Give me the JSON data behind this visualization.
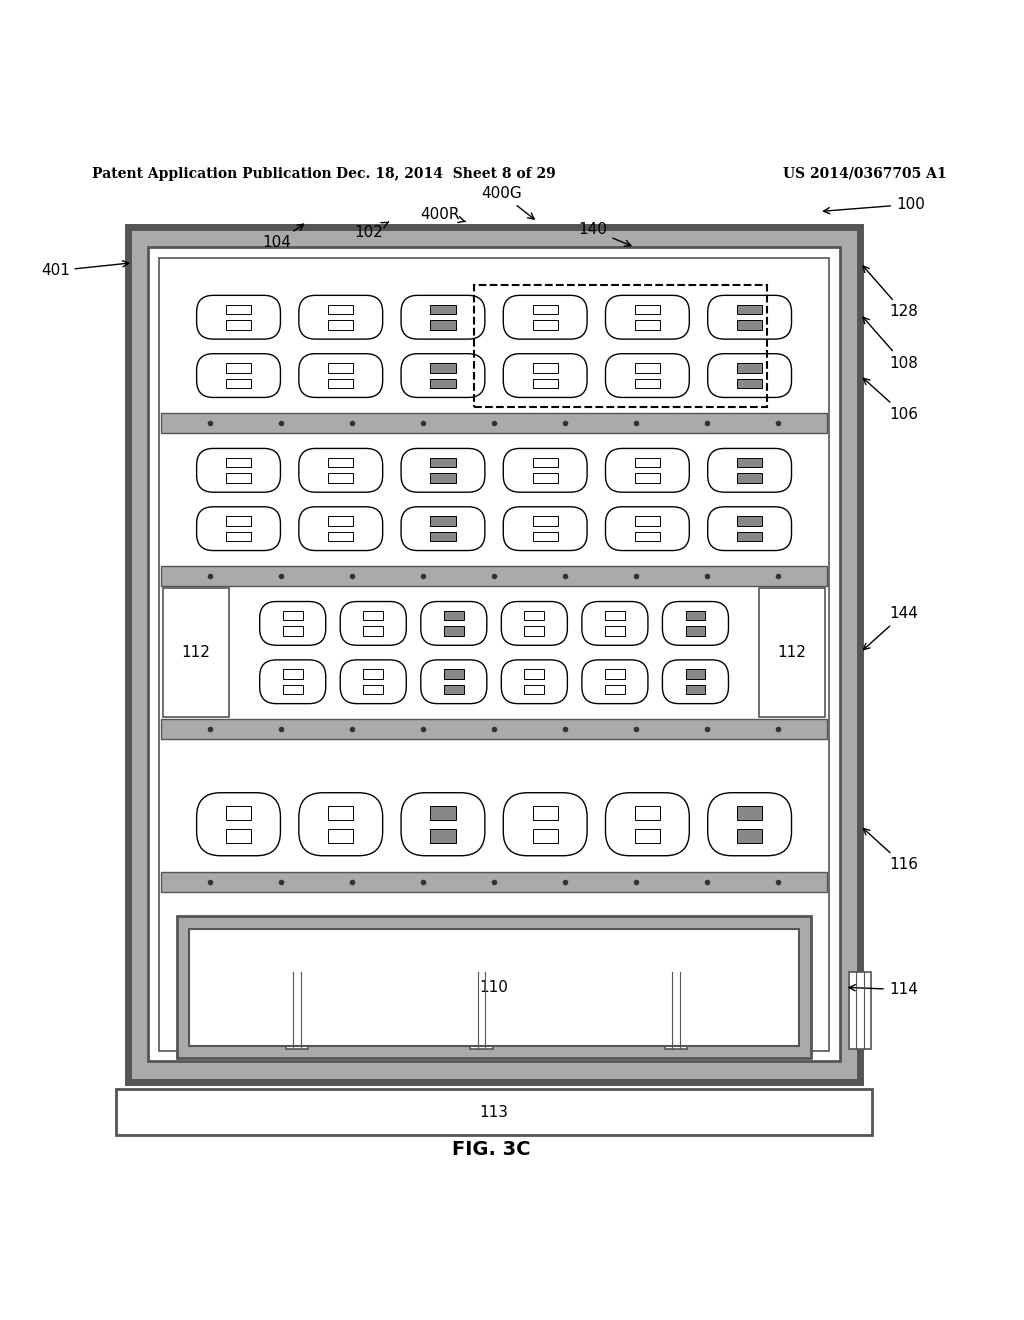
{
  "bg_color": "#ffffff",
  "header_text": "Patent Application Publication",
  "header_date": "Dec. 18, 2014  Sheet 8 of 29",
  "header_patent": "US 2014/0367705 A1",
  "fig_label": "FIG. 3C",
  "gray_color": "#aaaaaa",
  "dark_gray": "#555555",
  "frame_lw": 4,
  "num_rows": 4,
  "num_cols": 6
}
